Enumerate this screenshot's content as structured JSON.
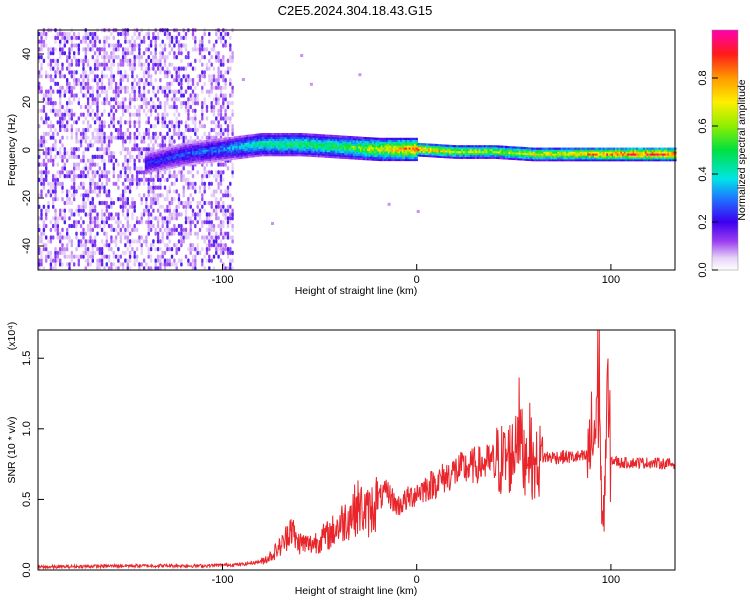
{
  "title": "C2E5.2024.304.18.43.G15",
  "chart_data": [
    {
      "type": "heatmap",
      "xlabel": "Height of straight line (km)",
      "ylabel": "Frequency (Hz)",
      "xlim": [
        -195,
        133
      ],
      "ylim": [
        -50,
        50
      ],
      "x_ticks": [
        "-100",
        "0",
        "100"
      ],
      "y_ticks": [
        "-40",
        "-20",
        "0",
        "20",
        "40"
      ],
      "x_tick_values": [
        -100,
        0,
        100
      ],
      "y_tick_values": [
        -40,
        -20,
        0,
        20,
        40
      ],
      "colorbar": {
        "label": "Normalized spectral amplitude",
        "range": [
          0,
          1
        ],
        "ticks": [
          "0.0",
          "0.2",
          "0.4",
          "0.6",
          "0.8"
        ],
        "tick_values": [
          0,
          0.2,
          0.4,
          0.6,
          0.8
        ],
        "colormap": "rainbow (white-violet-blue-cyan-green-yellow-red-magenta)"
      },
      "ridge": {
        "x": [
          -140,
          -120,
          -100,
          -80,
          -60,
          -40,
          -20,
          0,
          20,
          40,
          60,
          80,
          100,
          133
        ],
        "freq": [
          -6,
          -2,
          0,
          2,
          2,
          1,
          0,
          0,
          -1,
          -1,
          -2,
          -2,
          -2,
          -2
        ],
        "peak_amplitude": [
          0.25,
          0.3,
          0.35,
          0.5,
          0.55,
          0.55,
          0.75,
          0.9,
          0.75,
          0.7,
          0.75,
          0.8,
          0.95,
          1.0
        ]
      },
      "noise_region_x": [
        -195,
        -95
      ]
    },
    {
      "type": "line",
      "xlabel": "Height of straight line (km)",
      "ylabel": "SNR (10 * v/v)",
      "y_multiplier": "(x10⁴)",
      "xlim": [
        -195,
        133
      ],
      "ylim": [
        0,
        1.7
      ],
      "x_ticks": [
        "-100",
        "0",
        "100"
      ],
      "y_ticks": [
        "0.0",
        "0.5",
        "1.0",
        "1.5"
      ],
      "x_tick_values": [
        -100,
        0,
        100
      ],
      "y_tick_values": [
        0,
        0.5,
        1.0,
        1.5
      ],
      "series": [
        {
          "color": "#e8252b",
          "x": [
            -195,
            -150,
            -110,
            -90,
            -80,
            -75,
            -68,
            -65,
            -62,
            -55,
            -45,
            -35,
            -30,
            -25,
            -20,
            -15,
            -10,
            -5,
            0,
            10,
            20,
            30,
            40,
            45,
            50,
            52,
            55,
            58,
            60,
            65,
            70,
            80,
            88,
            92,
            94,
            95,
            96,
            98,
            100,
            105,
            110,
            120,
            133
          ],
          "y": [
            0.02,
            0.03,
            0.03,
            0.04,
            0.06,
            0.1,
            0.2,
            0.32,
            0.2,
            0.18,
            0.25,
            0.38,
            0.45,
            0.4,
            0.5,
            0.55,
            0.45,
            0.5,
            0.55,
            0.62,
            0.7,
            0.74,
            0.77,
            0.78,
            0.82,
            1.1,
            0.78,
            0.9,
            0.72,
            0.8,
            0.8,
            0.8,
            0.8,
            1.0,
            1.5,
            0.55,
            0.25,
            1.2,
            0.78,
            0.76,
            0.76,
            0.76,
            0.75
          ]
        }
      ]
    }
  ]
}
